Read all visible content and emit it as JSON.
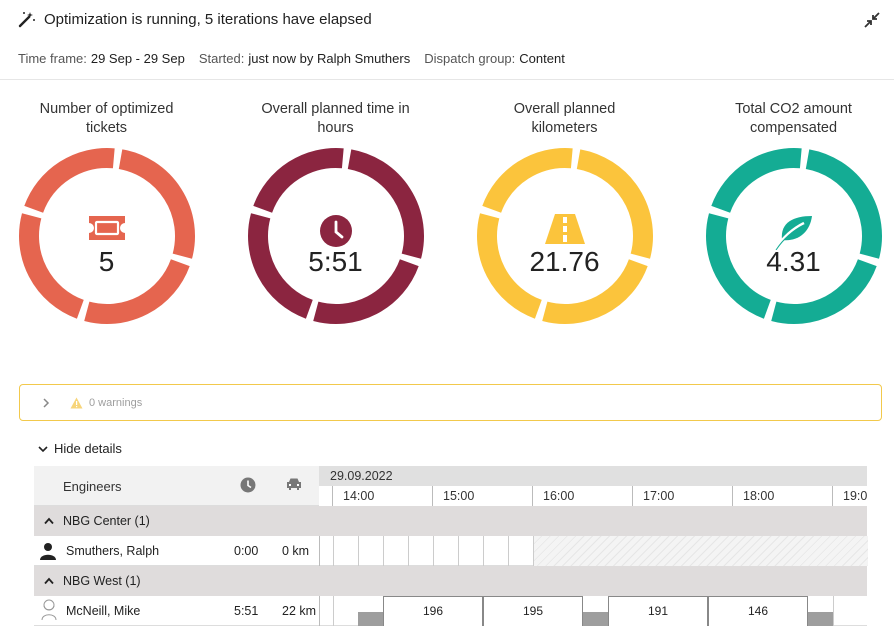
{
  "header": {
    "title": "Optimization is running, 5 iterations have elapsed",
    "meta": [
      {
        "key": "Time frame:",
        "value": "29 Sep - 29 Sep"
      },
      {
        "key": "Started:",
        "value": "just now by Ralph Smuthers"
      },
      {
        "key": "Dispatch group:",
        "value": "Content"
      }
    ]
  },
  "kpis": [
    {
      "label": "Number of optimized tickets",
      "value": "5",
      "color": "#e5654f",
      "icon": "ticket-icon"
    },
    {
      "label": "Overall planned time in hours",
      "value": "5:51",
      "color": "#8b2540",
      "icon": "clock-icon"
    },
    {
      "label": "Overall planned kilometers",
      "value": "21.76",
      "color": "#fbc43c",
      "icon": "road-icon"
    },
    {
      "label": "Total CO2 amount compensated",
      "value": "4.31",
      "color": "#14ac94",
      "icon": "leaf-icon"
    }
  ],
  "warnings": {
    "text": "0 warnings"
  },
  "details": {
    "toggle_label": "Hide details"
  },
  "grid": {
    "engineers_label": "Engineers",
    "date": "29.09.2022",
    "hours": [
      "14:00",
      "15:00",
      "16:00",
      "17:00",
      "18:00",
      "19:0"
    ],
    "groups": [
      {
        "name": "NBG Center (1)",
        "engineers": [
          {
            "name": "Smuthers, Ralph",
            "time": "0:00",
            "km": "0 km"
          }
        ]
      },
      {
        "name": "NBG West (1)",
        "engineers": [
          {
            "name": "McNeill, Mike",
            "time": "5:51",
            "km": "22 km"
          }
        ]
      }
    ],
    "tasks": [
      "196",
      "195",
      "191",
      "146"
    ]
  }
}
